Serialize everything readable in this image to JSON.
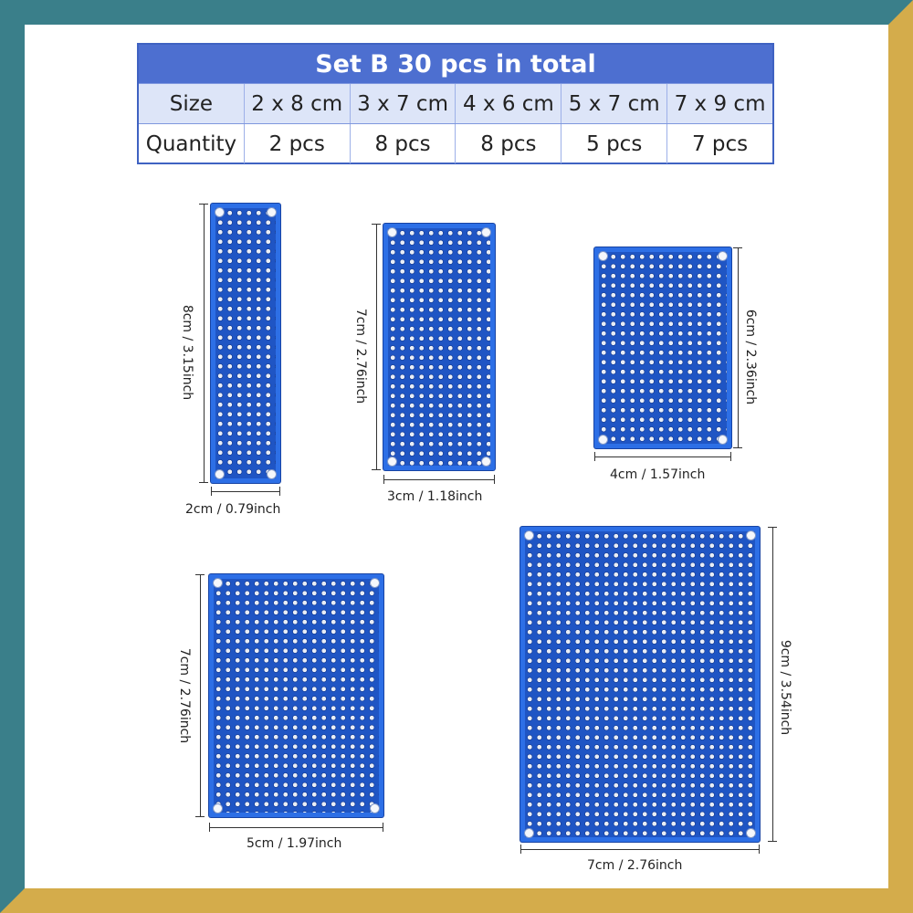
{
  "table": {
    "title": "Set B  30 pcs in total",
    "size_row": {
      "header": "Size",
      "values": [
        "2 x 8 cm",
        "3 x 7 cm",
        "4 x 6 cm",
        "5 x 7 cm",
        "7 x 9 cm"
      ]
    },
    "quantity_row": {
      "header": "Quantity",
      "values": [
        "2 pcs",
        "8 pcs",
        "8 pcs",
        "5 pcs",
        "7 pcs"
      ]
    }
  },
  "boards": [
    {
      "height_label": "8cm / 3.15inch",
      "width_label": "2cm / 0.79inch"
    },
    {
      "height_label": "7cm / 2.76inch",
      "width_label": "3cm / 1.18inch"
    },
    {
      "height_label": "6cm / 2.36inch",
      "width_label": "4cm / 1.57inch"
    },
    {
      "height_label": "7cm / 2.76inch",
      "width_label": "5cm / 1.97inch"
    },
    {
      "height_label": "9cm / 3.54inch",
      "width_label": "7cm / 2.76inch"
    }
  ],
  "colors": {
    "board": "#1f55c4",
    "table_header": "#4d6fd0",
    "frame_teal": "#3a7f8a",
    "frame_gold": "#d4ac4b"
  }
}
